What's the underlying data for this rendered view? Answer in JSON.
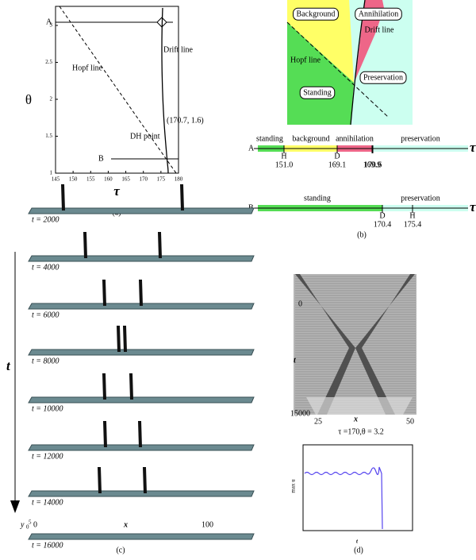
{
  "panel_a": {
    "caption": "(a)",
    "xlabel": "τ",
    "ylabel": "θ",
    "xticks": [
      145,
      150,
      155,
      160,
      165,
      170,
      175,
      180
    ],
    "yticks": [
      1,
      1.5,
      2,
      2.5,
      3
    ],
    "line_a": "A",
    "line_b": "B",
    "drift_line": "Drift line",
    "hopf_line": "Hopf line",
    "dh_point": "DH point",
    "dh_coords": "(170.7, 1.6)"
  },
  "panel_b": {
    "caption": "(b)",
    "regions": [
      "Background",
      "Annihilation",
      "Drift line",
      "Hopf line",
      "Preservation",
      "Standing"
    ],
    "bar_a": {
      "name": "A",
      "axis": "τ",
      "segments": [
        "standing",
        "background",
        "annihilation",
        "preservation"
      ],
      "marks": [
        {
          "letter": "H",
          "value": "151.0"
        },
        {
          "letter": "D",
          "value": "169.1"
        },
        {
          "letter": "",
          "value": "169.9"
        },
        {
          "letter": "",
          "value": "170.6"
        }
      ]
    },
    "bar_b": {
      "name": "B",
      "axis": "τ",
      "segments": [
        "standing",
        "preservation"
      ],
      "marks": [
        {
          "letter": "D",
          "value": "170.4"
        },
        {
          "letter": "H",
          "value": "175.4"
        }
      ]
    }
  },
  "panel_c": {
    "caption": "(c)",
    "time_axis": "t",
    "frames": [
      "t = 2000",
      "t = 4000",
      "t = 6000",
      "t = 8000",
      "t = 10000",
      "t = 12000",
      "t = 14000",
      "t = 16000"
    ],
    "y_label": "y",
    "y_ticks": [
      "0",
      "5"
    ],
    "x_start": "0",
    "x_label": "x",
    "x_end": "100"
  },
  "panel_d": {
    "caption": "(d)",
    "t_start": "0",
    "t_label": "t",
    "t_end": "15000",
    "x_start": "25",
    "x_label": "x",
    "x_end": "50",
    "params": "τ =170,θ = 3.2",
    "inset_ylabel": "max u",
    "inset_xlabel": "t"
  }
}
